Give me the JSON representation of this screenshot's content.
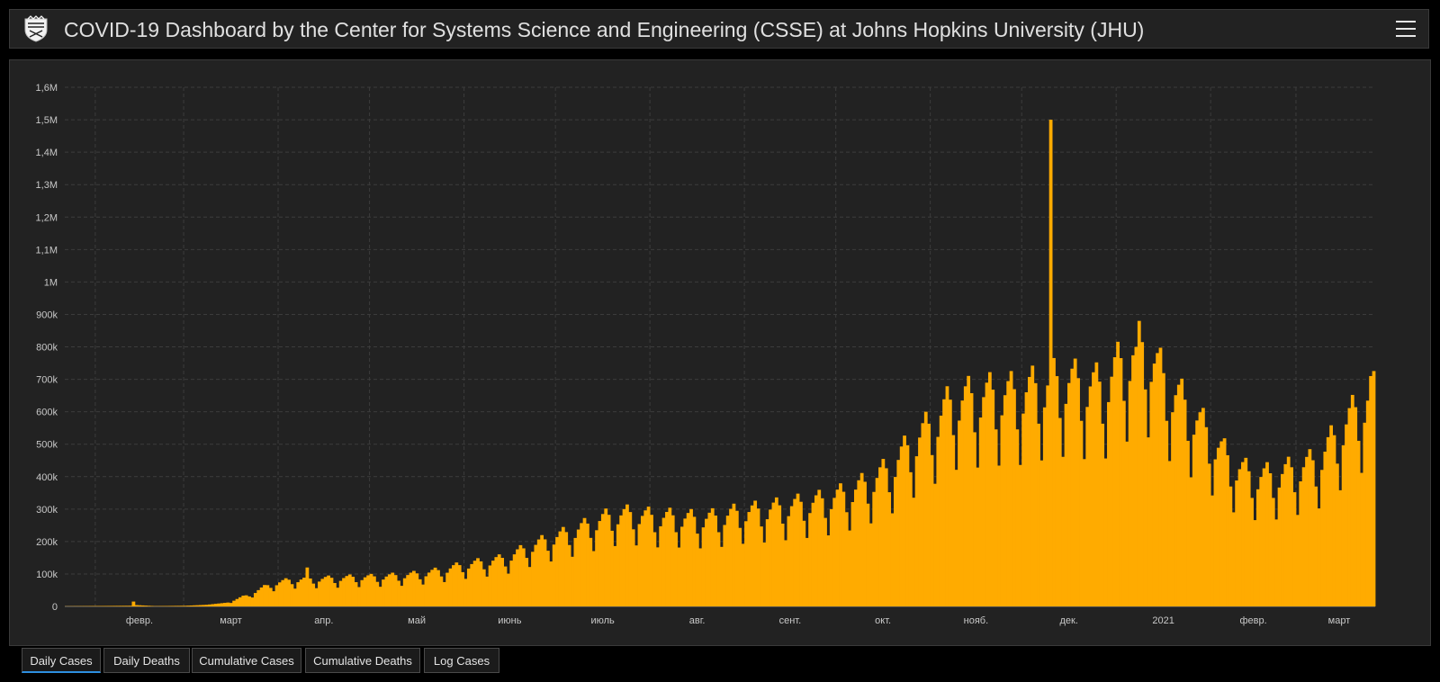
{
  "header": {
    "title": "COVID-19 Dashboard by the Center for Systems Science and Engineering (CSSE) at Johns Hopkins University (JHU)",
    "logo_icon": "jhu-shield-icon",
    "menu_icon": "hamburger-menu-icon"
  },
  "colors": {
    "bar": "#ffab00",
    "panel": "#222222",
    "grid": "#3c3c3c",
    "text": "#c8c8c8",
    "active_tab": "#2d8fe0"
  },
  "tabs": [
    {
      "label": "Daily Cases",
      "active": true
    },
    {
      "label": "Daily Deaths",
      "active": false
    },
    {
      "label": "Cumulative Cases",
      "active": false
    },
    {
      "label": "Cumulative Deaths",
      "active": false
    },
    {
      "label": "Log Cases",
      "active": false
    }
  ],
  "chart_data": {
    "type": "bar",
    "title": "",
    "xlabel": "",
    "ylabel": "",
    "grid": true,
    "ylim": [
      0,
      1600000
    ],
    "y_ticks": [
      {
        "value": 0,
        "label": "0"
      },
      {
        "value": 100000,
        "label": "100k"
      },
      {
        "value": 200000,
        "label": "200k"
      },
      {
        "value": 300000,
        "label": "300k"
      },
      {
        "value": 400000,
        "label": "400k"
      },
      {
        "value": 500000,
        "label": "500k"
      },
      {
        "value": 600000,
        "label": "600k"
      },
      {
        "value": 700000,
        "label": "700k"
      },
      {
        "value": 800000,
        "label": "800k"
      },
      {
        "value": 900000,
        "label": "900k"
      },
      {
        "value": 1000000,
        "label": "1M"
      },
      {
        "value": 1100000,
        "label": "1,1M"
      },
      {
        "value": 1200000,
        "label": "1,2M"
      },
      {
        "value": 1300000,
        "label": "1,3M"
      },
      {
        "value": 1400000,
        "label": "1,4M"
      },
      {
        "value": 1500000,
        "label": "1,5M"
      },
      {
        "value": 1600000,
        "label": "1,6M"
      }
    ],
    "x_start": "2020-01-22",
    "x_end": "2021-03-26",
    "x_ticks": [
      {
        "date": "2020-02-01",
        "label": "февр."
      },
      {
        "date": "2020-03-01",
        "label": "март"
      },
      {
        "date": "2020-04-01",
        "label": "апр."
      },
      {
        "date": "2020-05-01",
        "label": "май"
      },
      {
        "date": "2020-06-01",
        "label": "июнь"
      },
      {
        "date": "2020-07-01",
        "label": "июль"
      },
      {
        "date": "2020-08-01",
        "label": "авг."
      },
      {
        "date": "2020-09-01",
        "label": "сент."
      },
      {
        "date": "2020-10-01",
        "label": "окт."
      },
      {
        "date": "2020-11-01",
        "label": "нояб."
      },
      {
        "date": "2020-12-01",
        "label": "дек."
      },
      {
        "date": "2021-01-01",
        "label": "2021"
      },
      {
        "date": "2021-02-01",
        "label": "февр."
      },
      {
        "date": "2021-03-01",
        "label": "март"
      }
    ],
    "series": [
      {
        "anchors": [
          [
            "2020-01-22",
            500
          ],
          [
            "2020-02-12",
            2000
          ],
          [
            "2020-02-13",
            15000
          ],
          [
            "2020-02-14",
            4000
          ],
          [
            "2020-02-20",
            1000
          ],
          [
            "2020-03-01",
            2000
          ],
          [
            "2020-03-08",
            5000
          ],
          [
            "2020-03-15",
            12000
          ],
          [
            "2020-03-22",
            35000
          ],
          [
            "2020-03-29",
            65000
          ],
          [
            "2020-04-05",
            78000
          ],
          [
            "2020-04-12",
            80000
          ],
          [
            "2020-04-19",
            82000
          ],
          [
            "2020-04-26",
            85000
          ],
          [
            "2020-05-03",
            86000
          ],
          [
            "2020-05-10",
            90000
          ],
          [
            "2020-05-17",
            95000
          ],
          [
            "2020-05-24",
            105000
          ],
          [
            "2020-05-31",
            120000
          ],
          [
            "2020-06-07",
            130000
          ],
          [
            "2020-06-14",
            140000
          ],
          [
            "2020-06-21",
            170000
          ],
          [
            "2020-06-28",
            195000
          ],
          [
            "2020-07-05",
            215000
          ],
          [
            "2020-07-12",
            240000
          ],
          [
            "2020-07-19",
            265000
          ],
          [
            "2020-07-26",
            270000
          ],
          [
            "2020-08-02",
            260000
          ],
          [
            "2020-08-09",
            260000
          ],
          [
            "2020-08-16",
            255000
          ],
          [
            "2020-08-23",
            260000
          ],
          [
            "2020-08-30",
            275000
          ],
          [
            "2020-09-06",
            280000
          ],
          [
            "2020-09-13",
            290000
          ],
          [
            "2020-09-20",
            300000
          ],
          [
            "2020-09-27",
            310000
          ],
          [
            "2020-10-04",
            330000
          ],
          [
            "2020-10-11",
            360000
          ],
          [
            "2020-10-18",
            400000
          ],
          [
            "2020-10-25",
            470000
          ],
          [
            "2020-11-01",
            530000
          ],
          [
            "2020-11-08",
            600000
          ],
          [
            "2020-11-15",
            610000
          ],
          [
            "2020-11-22",
            620000
          ],
          [
            "2020-11-29",
            620000
          ],
          [
            "2020-12-06",
            640000
          ],
          [
            "2020-12-13",
            660000
          ],
          [
            "2020-12-20",
            650000
          ],
          [
            "2020-12-27",
            640000
          ],
          [
            "2021-01-03",
            720000
          ],
          [
            "2021-01-10",
            760000
          ],
          [
            "2021-01-17",
            650000
          ],
          [
            "2021-01-24",
            580000
          ],
          [
            "2021-01-31",
            500000
          ],
          [
            "2021-02-07",
            420000
          ],
          [
            "2021-02-14",
            380000
          ],
          [
            "2021-02-21",
            380000
          ],
          [
            "2021-02-28",
            400000
          ],
          [
            "2021-03-07",
            420000
          ],
          [
            "2021-03-14",
            500000
          ],
          [
            "2021-03-21",
            580000
          ],
          [
            "2021-03-26",
            620000
          ]
        ],
        "spikes": [
          [
            "2020-02-13",
            15000
          ],
          [
            "2020-04-10",
            120000
          ],
          [
            "2020-12-10",
            1500000
          ],
          [
            "2021-01-08",
            880000
          ],
          [
            "2021-01-07",
            800000
          ],
          [
            "2021-03-25",
            710000
          ]
        ]
      }
    ]
  }
}
